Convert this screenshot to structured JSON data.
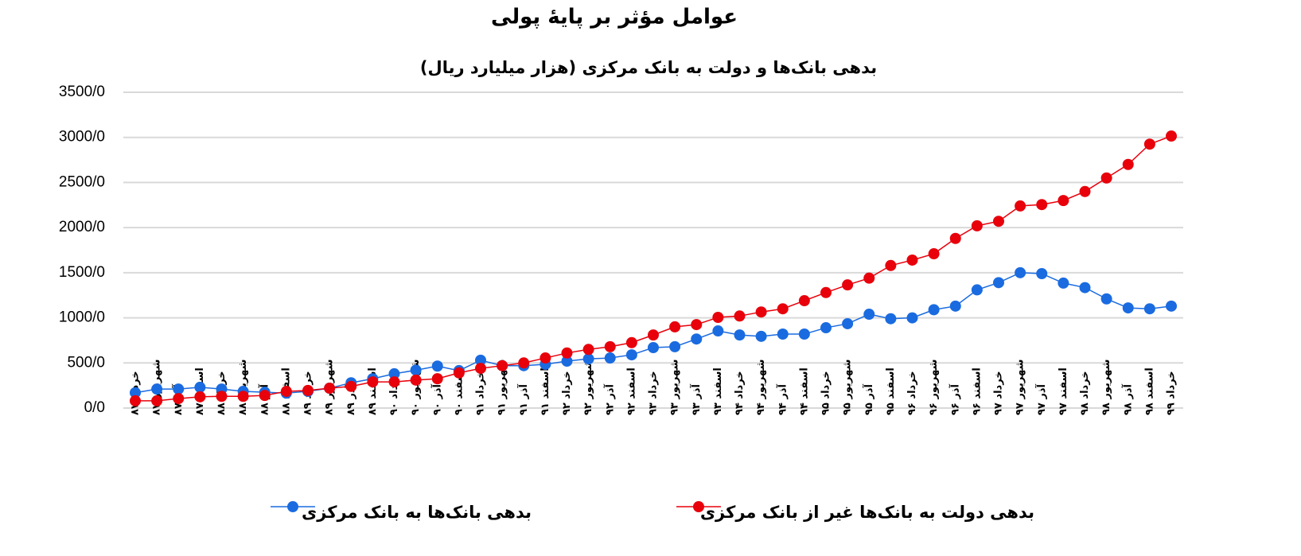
{
  "chart_data": {
    "type": "line",
    "title": "عوامل مؤثر بر پایهٔ پولی",
    "subtitle": "بدهی بانک‌ها و دولت به بانک مرکزی (هزار میلیارد ریال)",
    "categories": [
      "خرداد ۸۷",
      "شهریور ۸۷",
      "آذر ۸۷",
      "اسفند ۸۷",
      "خرداد ۸۸",
      "شهریور ۸۸",
      "آذر ۸۸",
      "اسفند ۸۸",
      "خرداد ۸۹",
      "شهریور ۸۹",
      "آذر ۸۹",
      "اسفند ۸۹",
      "خرداد ۹۰",
      "شهریور ۹۰",
      "آذر ۹۰",
      "اسفند ۹۰",
      "خرداد ۹۱",
      "شهریور ۹۱",
      "آذر ۹۱",
      "اسفند ۹۱",
      "خرداد ۹۲",
      "شهریور ۹۲",
      "آذر ۹۲",
      "اسفند ۹۲",
      "خرداد ۹۳",
      "شهریور ۹۳",
      "آذر ۹۳",
      "اسفند ۹۳",
      "خرداد ۹۴",
      "شهریور ۹۴",
      "آذر ۹۴",
      "اسفند ۹۴",
      "خرداد ۹۵",
      "شهریور ۹۵",
      "آذر ۹۵",
      "اسفند ۹۵",
      "خرداد ۹۶",
      "شهریور ۹۶",
      "آذر ۹۶",
      "اسفند ۹۶",
      "خرداد ۹۷",
      "شهریور ۹۷",
      "آذر ۹۷",
      "اسفند ۹۷",
      "خرداد ۹۸",
      "شهریور ۹۸",
      "آذر ۹۸",
      "اسفند ۹۸",
      "خرداد ۹۹"
    ],
    "series": [
      {
        "name": "بدهی بانک‌ها به بانک مرکزی",
        "color": "#1a6be0",
        "values": [
          170,
          210,
          210,
          230,
          210,
          185,
          175,
          165,
          185,
          220,
          280,
          325,
          380,
          420,
          465,
          415,
          530,
          470,
          470,
          485,
          520,
          545,
          555,
          590,
          670,
          680,
          765,
          855,
          810,
          795,
          820,
          820,
          890,
          935,
          1040,
          990,
          1000,
          1090,
          1130,
          1310,
          1390,
          1500,
          1490,
          1385,
          1335,
          1210,
          1110,
          1100,
          1130
        ]
      },
      {
        "name": "بدهی دولت به بانک‌ها غیر از بانک مرکزی",
        "color": "#e8000b",
        "values": [
          80,
          80,
          105,
          125,
          130,
          130,
          140,
          185,
          195,
          220,
          240,
          290,
          290,
          310,
          325,
          390,
          440,
          470,
          500,
          555,
          610,
          650,
          680,
          725,
          810,
          900,
          925,
          1005,
          1020,
          1065,
          1100,
          1190,
          1280,
          1365,
          1440,
          1580,
          1640,
          1710,
          1880,
          2020,
          2070,
          2240,
          2255,
          2300,
          2400,
          2550,
          2700,
          2925,
          3015
        ]
      }
    ],
    "ylim": [
      0,
      3500
    ],
    "yticks": [
      {
        "value": 0,
        "label": "0/0"
      },
      {
        "value": 500,
        "label": "500/0"
      },
      {
        "value": 1000,
        "label": "1000/0"
      },
      {
        "value": 1500,
        "label": "1500/0"
      },
      {
        "value": 2000,
        "label": "2000/0"
      },
      {
        "value": 2500,
        "label": "2500/0"
      },
      {
        "value": 3000,
        "label": "3000/0"
      },
      {
        "value": 3500,
        "label": "3500/0"
      }
    ],
    "grid": true
  }
}
